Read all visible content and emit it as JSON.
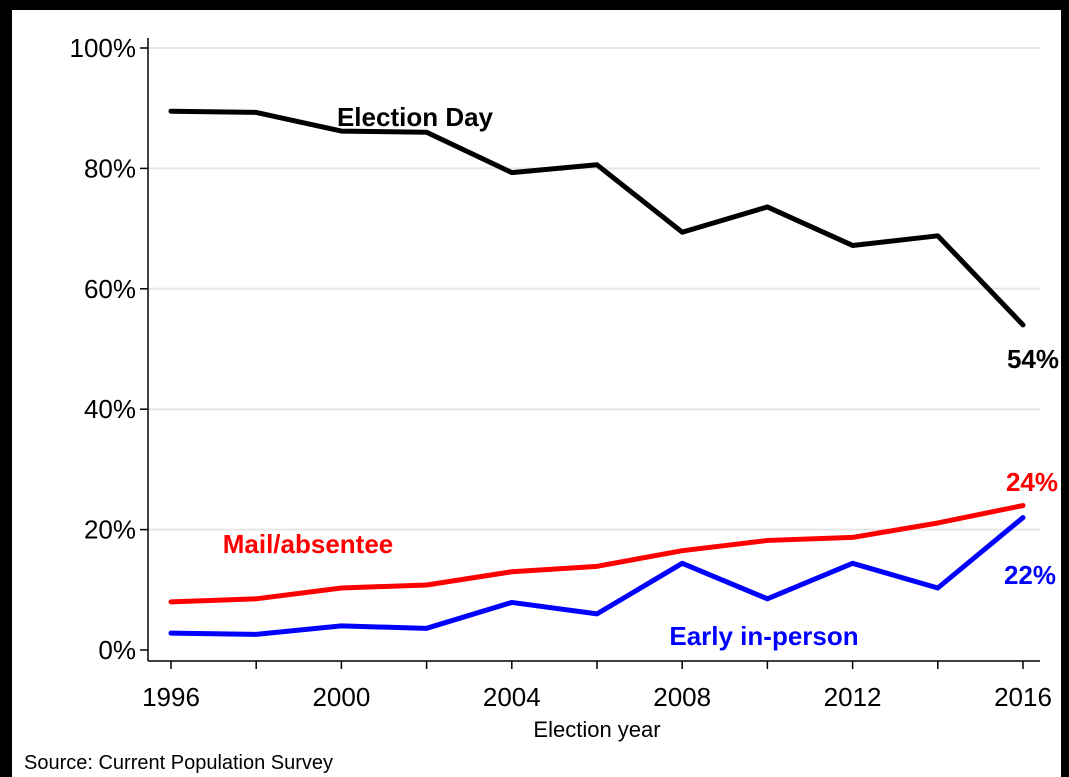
{
  "source": "Source:  Current Population Survey",
  "chart_data": {
    "type": "line",
    "title": "",
    "xlabel": "Election year",
    "ylabel": "",
    "x": [
      1996,
      1998,
      2000,
      2002,
      2004,
      2006,
      2008,
      2010,
      2012,
      2014,
      2016
    ],
    "xticks": [
      "1996",
      "2000",
      "2004",
      "2008",
      "2012",
      "2016"
    ],
    "xlim": [
      1996,
      2016
    ],
    "ylim": [
      0,
      100
    ],
    "yticks": [
      "0%",
      "20%",
      "40%",
      "60%",
      "80%",
      "100%"
    ],
    "grid": "horizontal",
    "series": [
      {
        "name": "Election Day",
        "color": "#000000",
        "values": [
          89.5,
          89.3,
          86.2,
          86.0,
          79.3,
          80.6,
          69.4,
          73.6,
          67.2,
          68.8,
          54.0
        ],
        "end_label": "54%"
      },
      {
        "name": "Mail/absentee",
        "color": "#ff0000",
        "values": [
          8.0,
          8.5,
          10.3,
          10.8,
          13.0,
          13.9,
          16.5,
          18.2,
          18.7,
          21.1,
          24.0
        ],
        "end_label": "24%"
      },
      {
        "name": "Early in-person",
        "color": "#0000ff",
        "values": [
          2.8,
          2.6,
          4.0,
          3.6,
          7.9,
          6.0,
          14.4,
          8.5,
          14.4,
          10.3,
          22.0
        ],
        "end_label": "22%"
      }
    ]
  }
}
